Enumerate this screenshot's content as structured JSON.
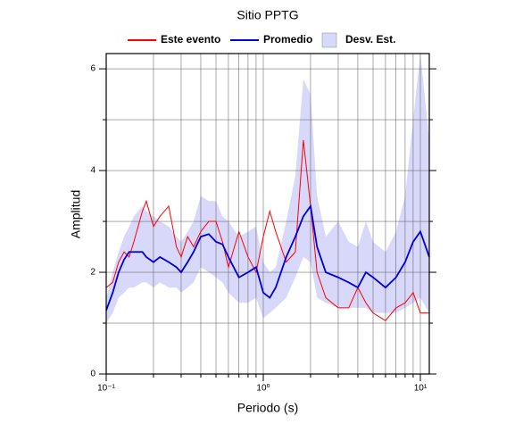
{
  "chart_data": {
    "type": "line",
    "title": "Sitio PPTG",
    "xlabel": "Periodo (s)",
    "ylabel": "Amplitud",
    "x": [
      0.1,
      0.11,
      0.12,
      0.13,
      0.14,
      0.15,
      0.17,
      0.18,
      0.2,
      0.22,
      0.25,
      0.28,
      0.3,
      0.33,
      0.36,
      0.4,
      0.45,
      0.5,
      0.55,
      0.6,
      0.7,
      0.8,
      0.9,
      1.0,
      1.1,
      1.2,
      1.4,
      1.6,
      1.8,
      2.0,
      2.2,
      2.5,
      3,
      3.5,
      4,
      4.5,
      5,
      6,
      7,
      8,
      9,
      10,
      11.4
    ],
    "series": [
      {
        "name": "Este evento",
        "color": "#ff0000",
        "values": [
          1.7,
          1.8,
          2.2,
          2.4,
          2.3,
          2.6,
          3.2,
          3.4,
          2.9,
          3.1,
          3.3,
          2.5,
          2.3,
          2.7,
          2.5,
          2.8,
          3.0,
          3.0,
          2.6,
          2.1,
          2.8,
          2.3,
          2.0,
          2.7,
          3.2,
          2.8,
          2.2,
          2.4,
          4.6,
          3.3,
          2.0,
          1.5,
          1.3,
          1.3,
          1.7,
          1.4,
          1.2,
          1.05,
          1.3,
          1.4,
          1.6,
          1.2,
          1.2
        ]
      },
      {
        "name": "Promedio",
        "color": "#0000dd",
        "values": [
          1.25,
          1.6,
          2.0,
          2.25,
          2.4,
          2.4,
          2.4,
          2.3,
          2.2,
          2.3,
          2.2,
          2.1,
          2.0,
          2.2,
          2.4,
          2.7,
          2.75,
          2.6,
          2.55,
          2.3,
          1.9,
          2.0,
          2.1,
          1.6,
          1.5,
          1.7,
          2.3,
          2.7,
          3.1,
          3.3,
          2.5,
          2.0,
          1.9,
          1.8,
          1.7,
          2.0,
          1.9,
          1.7,
          1.9,
          2.2,
          2.6,
          2.8,
          2.3
        ]
      },
      {
        "name": "Desv. Est.",
        "color": "#d8d8fa",
        "band": true,
        "lower": [
          1.0,
          1.2,
          1.5,
          1.6,
          1.7,
          1.7,
          1.8,
          1.8,
          1.7,
          1.8,
          1.7,
          1.7,
          1.6,
          1.7,
          1.8,
          2.1,
          2.0,
          1.9,
          1.8,
          1.6,
          1.4,
          1.4,
          1.5,
          1.1,
          1.2,
          1.3,
          1.5,
          1.9,
          2.3,
          2.2,
          1.5,
          1.4,
          1.3,
          1.3,
          1.3,
          1.3,
          1.2,
          1.2,
          1.2,
          1.3,
          1.4,
          1.5,
          1.2
        ],
        "upper": [
          1.5,
          2.0,
          2.4,
          2.7,
          2.9,
          3.1,
          3.3,
          3.2,
          3.1,
          3.0,
          2.9,
          2.7,
          2.6,
          2.8,
          3.0,
          3.5,
          3.4,
          3.4,
          3.1,
          3.0,
          2.7,
          2.8,
          2.9,
          2.2,
          2.0,
          2.1,
          3.0,
          3.9,
          5.8,
          5.5,
          3.5,
          2.7,
          3.0,
          2.6,
          2.5,
          3.0,
          2.6,
          2.4,
          2.8,
          3.5,
          5.0,
          6.3,
          4.6
        ]
      }
    ],
    "xscale": "log",
    "xlim": [
      0.1,
      11.4
    ],
    "xticks": [
      {
        "value": 0.1,
        "label": "10⁻¹"
      },
      {
        "value": 1,
        "label": "10⁰"
      },
      {
        "value": 10,
        "label": "10¹"
      }
    ],
    "xminor": [
      0.2,
      0.3,
      0.4,
      0.5,
      0.6,
      0.7,
      0.8,
      0.9,
      2,
      3,
      4,
      5,
      6,
      7,
      8,
      9
    ],
    "ylim": [
      0,
      6.3
    ],
    "yticks": [
      0,
      2,
      4,
      6
    ],
    "yminor": [
      1,
      3,
      5
    ],
    "grid": true
  }
}
